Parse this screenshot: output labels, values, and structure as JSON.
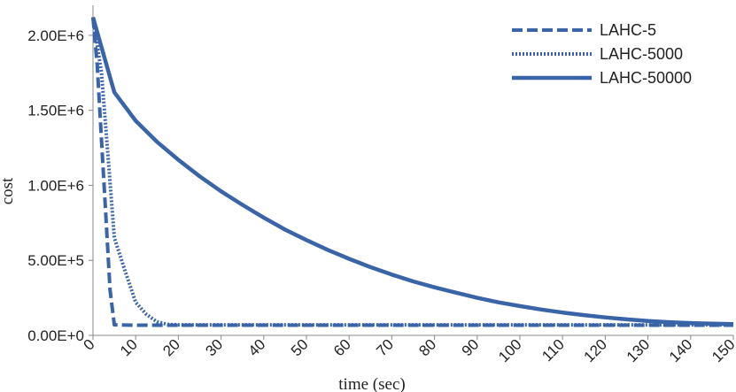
{
  "chart_data": {
    "type": "line",
    "xlabel": "time (sec)",
    "ylabel": "cost",
    "xlim": [
      0,
      150
    ],
    "ylim": [
      0,
      2200000
    ],
    "x_ticks": [
      0,
      10,
      20,
      30,
      40,
      50,
      60,
      70,
      80,
      90,
      100,
      110,
      120,
      130,
      140,
      150
    ],
    "x_tick_labels": [
      "0",
      "10",
      "20",
      "30",
      "40",
      "50",
      "60",
      "70",
      "80",
      "90",
      "100",
      "110",
      "120",
      "130",
      "140",
      "150"
    ],
    "y_ticks": [
      0,
      500000,
      1000000,
      1500000,
      2000000
    ],
    "y_tick_labels": [
      "0.00E+0",
      "5.00E+5",
      "1.00E+6",
      "1.50E+6",
      "2.00E+6"
    ],
    "grid": false,
    "legend_position": "top-right",
    "color": "#3a64a8",
    "series": [
      {
        "name": "LAHC-5",
        "style": "dashed",
        "x": [
          0,
          1,
          2,
          3,
          4,
          5,
          10,
          20,
          30,
          40,
          50,
          60,
          70,
          80,
          90,
          100,
          110,
          120,
          130,
          140,
          150
        ],
        "y": [
          2120000,
          1800000,
          1300000,
          800000,
          300000,
          70000,
          68000,
          68000,
          68000,
          68000,
          68000,
          68000,
          68000,
          68000,
          68000,
          68000,
          68000,
          68000,
          68000,
          68000,
          68000
        ]
      },
      {
        "name": "LAHC-5000",
        "style": "dotted",
        "x": [
          0,
          2,
          3.5,
          5,
          7.5,
          10,
          12.5,
          15,
          17.5,
          20,
          30,
          40,
          50,
          60,
          70,
          80,
          90,
          100,
          110,
          120,
          130,
          140,
          150
        ],
        "y": [
          2120000,
          1750000,
          1200000,
          650000,
          430000,
          220000,
          140000,
          90000,
          73000,
          70000,
          70000,
          70000,
          70000,
          70000,
          70000,
          70000,
          70000,
          70000,
          70000,
          70000,
          70000,
          70000,
          70000
        ]
      },
      {
        "name": "LAHC-50000",
        "style": "solid",
        "x": [
          0,
          5,
          10,
          15,
          20,
          25,
          30,
          35,
          40,
          45,
          50,
          55,
          60,
          65,
          70,
          75,
          80,
          85,
          90,
          95,
          100,
          105,
          110,
          115,
          120,
          125,
          130,
          135,
          140,
          145,
          150
        ],
        "y": [
          2120000,
          1620000,
          1430000,
          1290000,
          1170000,
          1060000,
          960000,
          870000,
          785000,
          705000,
          635000,
          570000,
          510000,
          455000,
          405000,
          360000,
          320000,
          285000,
          250000,
          220000,
          195000,
          172000,
          152000,
          135000,
          120000,
          107000,
          96000,
          88000,
          82000,
          78000,
          75000
        ]
      }
    ]
  }
}
